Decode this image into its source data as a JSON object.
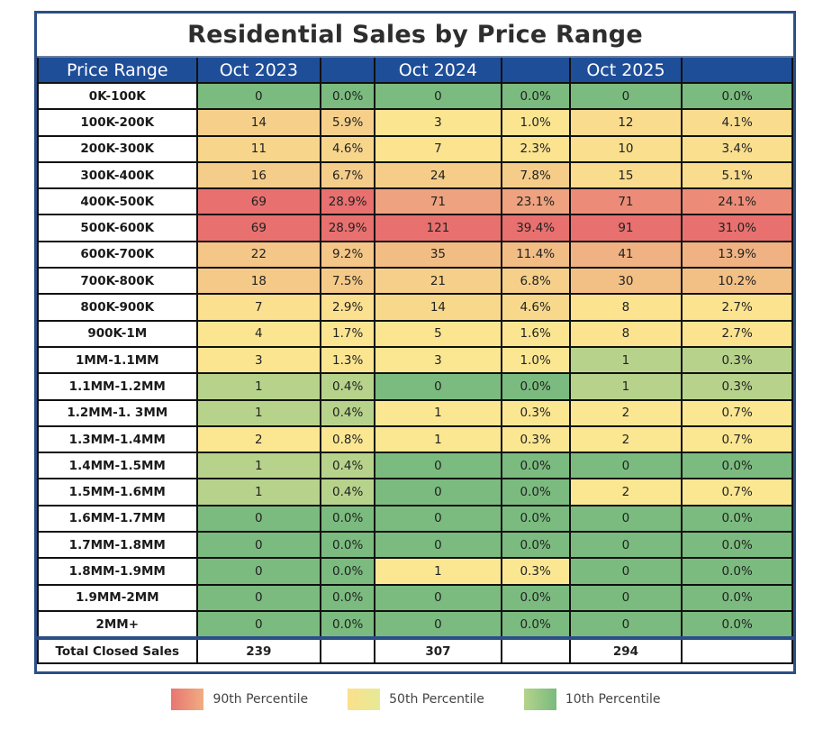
{
  "chart_data": {
    "type": "table",
    "title": "Residential Sales by Price Range",
    "columns": [
      "Price Range",
      "Oct 2023",
      "",
      "Oct 2024",
      "",
      "Oct 2025",
      ""
    ],
    "series_names": [
      "Oct 2023",
      "Oct 2024",
      "Oct 2025"
    ],
    "rows": [
      {
        "range": "0K-100K",
        "vals": [
          {
            "n": "0",
            "p": "0.0%"
          },
          {
            "n": "0",
            "p": "0.0%"
          },
          {
            "n": "0",
            "p": "0.0%"
          }
        ],
        "colors": [
          "#7bbb7f",
          "#7bbb7f",
          "#7bbb7f"
        ]
      },
      {
        "range": "100K-200K",
        "vals": [
          {
            "n": "14",
            "p": "5.9%"
          },
          {
            "n": "3",
            "p": "1.0%"
          },
          {
            "n": "12",
            "p": "4.1%"
          }
        ],
        "colors": [
          "#f6d08b",
          "#fbe591",
          "#f9dc8d"
        ]
      },
      {
        "range": "200K-300K",
        "vals": [
          {
            "n": "11",
            "p": "4.6%"
          },
          {
            "n": "7",
            "p": "2.3%"
          },
          {
            "n": "10",
            "p": "3.4%"
          }
        ],
        "colors": [
          "#f7d68c",
          "#fbe390",
          "#f9df8e"
        ]
      },
      {
        "range": "300K-400K",
        "vals": [
          {
            "n": "16",
            "p": "6.7%"
          },
          {
            "n": "24",
            "p": "7.8%"
          },
          {
            "n": "15",
            "p": "5.1%"
          }
        ],
        "colors": [
          "#f5cd8a",
          "#f5cd89",
          "#f9dc8d"
        ]
      },
      {
        "range": "400K-500K",
        "vals": [
          {
            "n": "69",
            "p": "28.9%"
          },
          {
            "n": "71",
            "p": "23.1%"
          },
          {
            "n": "71",
            "p": "24.1%"
          }
        ],
        "colors": [
          "#e8706f",
          "#eea27f",
          "#ec8c78"
        ]
      },
      {
        "range": "500K-600K",
        "vals": [
          {
            "n": "69",
            "p": "28.9%"
          },
          {
            "n": "121",
            "p": "39.4%"
          },
          {
            "n": "91",
            "p": "31.0%"
          }
        ],
        "colors": [
          "#e8706f",
          "#e8706f",
          "#e8706f"
        ]
      },
      {
        "range": "600K-700K",
        "vals": [
          {
            "n": "22",
            "p": "9.2%"
          },
          {
            "n": "35",
            "p": "11.4%"
          },
          {
            "n": "41",
            "p": "13.9%"
          }
        ],
        "colors": [
          "#f4c687",
          "#f2bd85",
          "#f0b282"
        ]
      },
      {
        "range": "700K-800K",
        "vals": [
          {
            "n": "18",
            "p": "7.5%"
          },
          {
            "n": "21",
            "p": "6.8%"
          },
          {
            "n": "30",
            "p": "10.2%"
          }
        ],
        "colors": [
          "#f5ca88",
          "#f6d08a",
          "#f2bf85"
        ]
      },
      {
        "range": "800K-900K",
        "vals": [
          {
            "n": "7",
            "p": "2.9%"
          },
          {
            "n": "14",
            "p": "4.6%"
          },
          {
            "n": "8",
            "p": "2.7%"
          }
        ],
        "colors": [
          "#fae08f",
          "#f8d98c",
          "#fbe390"
        ]
      },
      {
        "range": "900K-1M",
        "vals": [
          {
            "n": "4",
            "p": "1.7%"
          },
          {
            "n": "5",
            "p": "1.6%"
          },
          {
            "n": "8",
            "p": "2.7%"
          }
        ],
        "colors": [
          "#fbe591",
          "#fbe591",
          "#fbe390"
        ]
      },
      {
        "range": "1MM-1.1MM",
        "vals": [
          {
            "n": "3",
            "p": "1.3%"
          },
          {
            "n": "3",
            "p": "1.0%"
          },
          {
            "n": "1",
            "p": "0.3%"
          }
        ],
        "colors": [
          "#fbe591",
          "#fbe792",
          "#b7d38b"
        ]
      },
      {
        "range": "1.1MM-1.2MM",
        "vals": [
          {
            "n": "1",
            "p": "0.4%"
          },
          {
            "n": "0",
            "p": "0.0%"
          },
          {
            "n": "1",
            "p": "0.3%"
          }
        ],
        "colors": [
          "#b7d38b",
          "#7bbb7f",
          "#b7d38b"
        ]
      },
      {
        "range": "1.2MM-1. 3MM",
        "vals": [
          {
            "n": "1",
            "p": "0.4%"
          },
          {
            "n": "1",
            "p": "0.3%"
          },
          {
            "n": "2",
            "p": "0.7%"
          }
        ],
        "colors": [
          "#b7d38b",
          "#fbe792",
          "#fbe792"
        ]
      },
      {
        "range": "1.3MM-1.4MM",
        "vals": [
          {
            "n": "2",
            "p": "0.8%"
          },
          {
            "n": "1",
            "p": "0.3%"
          },
          {
            "n": "2",
            "p": "0.7%"
          }
        ],
        "colors": [
          "#fbe792",
          "#fbe792",
          "#fbe792"
        ]
      },
      {
        "range": "1.4MM-1.5MM",
        "vals": [
          {
            "n": "1",
            "p": "0.4%"
          },
          {
            "n": "0",
            "p": "0.0%"
          },
          {
            "n": "0",
            "p": "0.0%"
          }
        ],
        "colors": [
          "#b7d38b",
          "#7bbb7f",
          "#7bbb7f"
        ]
      },
      {
        "range": "1.5MM-1.6MM",
        "vals": [
          {
            "n": "1",
            "p": "0.4%"
          },
          {
            "n": "0",
            "p": "0.0%"
          },
          {
            "n": "2",
            "p": "0.7%"
          }
        ],
        "colors": [
          "#b7d38b",
          "#7bbb7f",
          "#fbe792"
        ]
      },
      {
        "range": "1.6MM-1.7MM",
        "vals": [
          {
            "n": "0",
            "p": "0.0%"
          },
          {
            "n": "0",
            "p": "0.0%"
          },
          {
            "n": "0",
            "p": "0.0%"
          }
        ],
        "colors": [
          "#7bbb7f",
          "#7bbb7f",
          "#7bbb7f"
        ]
      },
      {
        "range": "1.7MM-1.8MM",
        "vals": [
          {
            "n": "0",
            "p": "0.0%"
          },
          {
            "n": "0",
            "p": "0.0%"
          },
          {
            "n": "0",
            "p": "0.0%"
          }
        ],
        "colors": [
          "#7bbb7f",
          "#7bbb7f",
          "#7bbb7f"
        ]
      },
      {
        "range": "1.8MM-1.9MM",
        "vals": [
          {
            "n": "0",
            "p": "0.0%"
          },
          {
            "n": "1",
            "p": "0.3%"
          },
          {
            "n": "0",
            "p": "0.0%"
          }
        ],
        "colors": [
          "#7bbb7f",
          "#fbe792",
          "#7bbb7f"
        ]
      },
      {
        "range": "1.9MM-2MM",
        "vals": [
          {
            "n": "0",
            "p": "0.0%"
          },
          {
            "n": "0",
            "p": "0.0%"
          },
          {
            "n": "0",
            "p": "0.0%"
          }
        ],
        "colors": [
          "#7bbb7f",
          "#7bbb7f",
          "#7bbb7f"
        ]
      },
      {
        "range": "2MM+",
        "vals": [
          {
            "n": "0",
            "p": "0.0%"
          },
          {
            "n": "0",
            "p": "0.0%"
          },
          {
            "n": "0",
            "p": "0.0%"
          }
        ],
        "colors": [
          "#7bbb7f",
          "#7bbb7f",
          "#7bbb7f"
        ]
      }
    ],
    "total": {
      "label": "Total Closed Sales",
      "values": [
        "239",
        "307",
        "294"
      ]
    },
    "legend": [
      {
        "label": "90th Percentile",
        "from": "#e87572",
        "to": "#f0ad80"
      },
      {
        "label": "50th Percentile",
        "from": "#fbe08c",
        "to": "#e6ea96"
      },
      {
        "label": "10th Percentile",
        "from": "#b5d38b",
        "to": "#79ba7e"
      }
    ],
    "legend_position": "bottom"
  },
  "colors": {
    "header_bg": "#1f4e99",
    "frame": "#2b4f86"
  }
}
